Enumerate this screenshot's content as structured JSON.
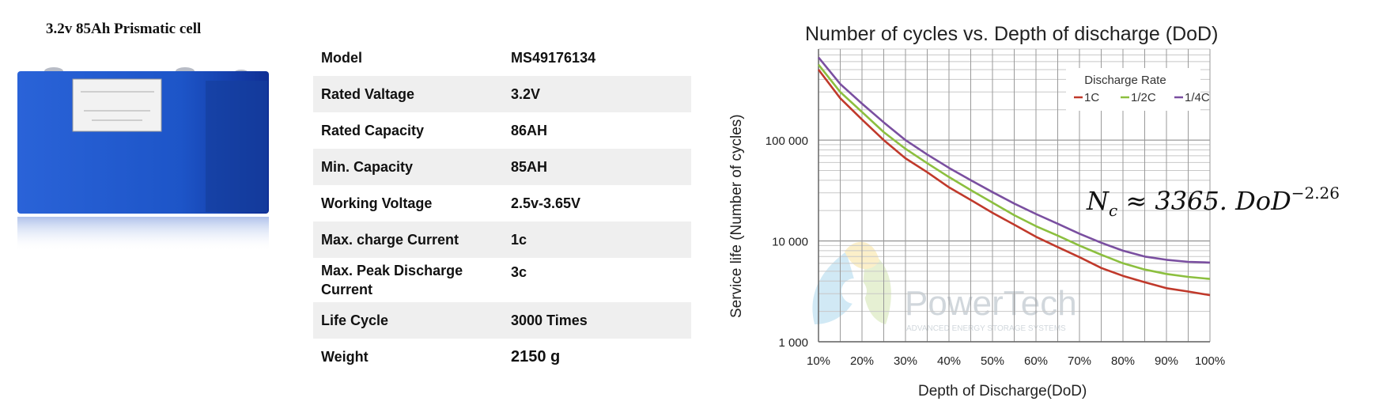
{
  "product": {
    "title": "3.2v 85Ah Prismatic cell",
    "colors": {
      "cell_blue": "#1e55c8",
      "label": "#f2f2f2"
    }
  },
  "specs": [
    {
      "key": "Model",
      "value": "MS49176134"
    },
    {
      "key": "Rated Valtage",
      "value": "3.2V"
    },
    {
      "key": "Rated Capacity",
      "value": "86AH"
    },
    {
      "key": "Min. Capacity",
      "value": "85AH"
    },
    {
      "key": "Working Voltage",
      "value": "2.5v-3.65V"
    },
    {
      "key": "Max. charge Current",
      "value": "1c"
    },
    {
      "key": "Max. Peak Discharge Current",
      "value": "3c"
    },
    {
      "key": "Life Cycle",
      "value": "3000 Times"
    },
    {
      "key": "Weight",
      "value": "2150 g"
    }
  ],
  "chart_data": {
    "type": "line",
    "title": "Number of cycles vs. Depth of discharge (DoD)",
    "xlabel": "Depth of Discharge(DoD)",
    "ylabel": "Service life (Number of cycles)",
    "x": [
      10,
      15,
      20,
      25,
      30,
      35,
      40,
      45,
      50,
      55,
      60,
      65,
      70,
      75,
      80,
      85,
      90,
      95,
      100
    ],
    "x_unit": "%",
    "xlim": [
      10,
      100
    ],
    "x_ticks": [
      "10%",
      "20%",
      "30%",
      "40%",
      "50%",
      "60%",
      "70%",
      "80%",
      "90%",
      "100%"
    ],
    "y_scale": "log",
    "ylim": [
      1000,
      800000
    ],
    "y_ticks": [
      {
        "value": 1000,
        "label": "1 000"
      },
      {
        "value": 10000,
        "label": "10 000"
      },
      {
        "value": 100000,
        "label": "100 000"
      }
    ],
    "grid": true,
    "legend": {
      "title": "Discharge Rate",
      "position": "top-right"
    },
    "series": [
      {
        "name": "1C",
        "color": "#c0392b",
        "values": [
          500000,
          260000,
          160000,
          100000,
          66000,
          48000,
          34000,
          25500,
          19000,
          14500,
          11000,
          8700,
          6900,
          5400,
          4500,
          3900,
          3400,
          3150,
          2900
        ]
      },
      {
        "name": "1/2C",
        "color": "#8cbf3f",
        "values": [
          560000,
          300000,
          190000,
          120000,
          82000,
          59000,
          43000,
          32000,
          24000,
          18000,
          14000,
          11300,
          9000,
          7300,
          6000,
          5200,
          4700,
          4400,
          4200
        ]
      },
      {
        "name": "1/4C",
        "color": "#7a4fa0",
        "values": [
          660000,
          360000,
          230000,
          150000,
          100000,
          72000,
          53000,
          40000,
          30500,
          23500,
          18500,
          14800,
          11800,
          9600,
          8000,
          7000,
          6500,
          6200,
          6100
        ]
      }
    ],
    "annotation": {
      "formula": "N_c ≈ 3365. DoD^-2.26"
    },
    "watermark": {
      "name": "PowerTech",
      "tagline": "ADVANCED ENERGY STORAGE SYSTEMS"
    }
  },
  "formula": {
    "lhs": "N",
    "sub": "c",
    "approx": "≈",
    "rhs": "3365. DoD",
    "exp": "−2.26"
  }
}
